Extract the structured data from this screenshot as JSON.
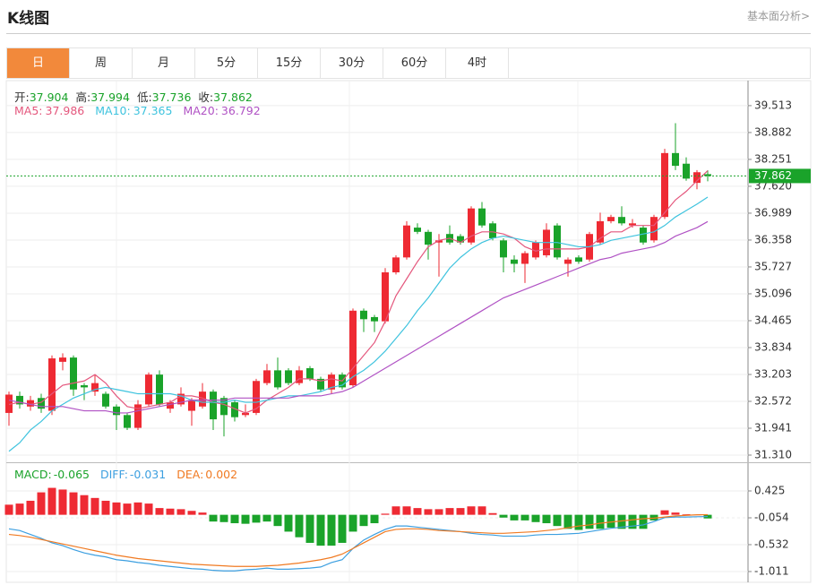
{
  "header": {
    "title": "K线图",
    "link": "基本面分析>"
  },
  "tabs": [
    "日",
    "周",
    "月",
    "5分",
    "15分",
    "30分",
    "60分",
    "4时"
  ],
  "active_tab": 0,
  "chart_data": [
    {
      "type": "candlestick",
      "up_color": "#ee2a33",
      "down_color": "#1aa32a",
      "open": [
        32.3,
        32.7,
        32.45,
        32.65,
        32.35,
        33.5,
        33.6,
        32.95,
        32.8,
        32.75,
        32.45,
        32.25,
        31.95,
        32.5,
        33.2,
        32.4,
        32.5,
        32.35,
        32.45,
        32.8,
        32.65,
        32.55,
        32.25,
        32.3,
        33.0,
        33.3,
        33.3,
        33.0,
        33.35,
        33.1,
        32.85,
        33.2,
        32.95,
        34.7,
        34.55,
        34.45,
        35.6,
        35.95,
        36.65,
        36.55,
        36.3,
        36.5,
        36.45,
        36.3,
        37.1,
        36.75,
        36.35,
        35.9,
        35.8,
        35.95,
        36.0,
        36.7,
        35.8,
        35.95,
        35.9,
        36.3,
        36.8,
        36.9,
        36.7,
        36.65,
        36.35,
        36.9,
        38.4,
        38.15,
        37.7,
        37.904
      ],
      "high": [
        32.8,
        32.8,
        32.7,
        32.75,
        33.65,
        33.7,
        33.65,
        33.0,
        33.2,
        32.8,
        32.5,
        32.3,
        32.6,
        33.25,
        33.3,
        32.6,
        32.9,
        32.65,
        33.0,
        32.85,
        32.7,
        32.6,
        32.5,
        33.1,
        33.45,
        33.6,
        33.35,
        33.4,
        33.4,
        33.15,
        33.25,
        33.25,
        34.75,
        34.75,
        34.6,
        35.7,
        36.0,
        36.8,
        36.75,
        36.6,
        36.5,
        36.7,
        36.5,
        37.15,
        37.25,
        36.8,
        36.4,
        36.0,
        36.1,
        36.35,
        36.75,
        36.75,
        35.95,
        36.0,
        36.55,
        37.0,
        36.95,
        37.15,
        36.85,
        36.7,
        36.95,
        38.5,
        39.1,
        38.3,
        38.0,
        37.994
      ],
      "low": [
        32.0,
        32.4,
        32.35,
        32.3,
        32.25,
        33.3,
        32.7,
        32.6,
        32.7,
        32.4,
        31.9,
        31.9,
        31.9,
        32.45,
        32.45,
        32.3,
        32.45,
        32.0,
        32.4,
        31.9,
        31.75,
        32.1,
        32.2,
        32.25,
        32.95,
        32.85,
        32.95,
        32.95,
        33.05,
        32.8,
        32.75,
        32.85,
        32.9,
        34.2,
        34.2,
        34.4,
        35.55,
        35.9,
        36.5,
        35.9,
        35.5,
        36.25,
        36.25,
        36.25,
        36.65,
        36.35,
        35.6,
        35.6,
        35.35,
        35.9,
        35.95,
        35.9,
        35.5,
        35.8,
        35.85,
        36.25,
        36.75,
        36.7,
        36.65,
        36.25,
        36.3,
        36.85,
        38.0,
        37.75,
        37.55,
        37.736
      ],
      "close": [
        32.73,
        32.5,
        32.6,
        32.4,
        33.58,
        33.6,
        32.85,
        32.9,
        33.0,
        32.45,
        32.25,
        31.95,
        32.5,
        33.2,
        32.5,
        32.55,
        32.75,
        32.6,
        32.8,
        32.15,
        32.25,
        32.2,
        32.3,
        33.05,
        33.3,
        32.9,
        33.0,
        33.3,
        33.1,
        32.85,
        33.2,
        32.9,
        34.7,
        34.5,
        34.45,
        35.6,
        35.95,
        36.7,
        36.55,
        36.25,
        36.35,
        36.3,
        36.3,
        37.1,
        36.7,
        36.4,
        35.95,
        35.8,
        36.05,
        36.3,
        36.6,
        35.95,
        35.9,
        35.85,
        36.5,
        36.8,
        36.9,
        36.75,
        36.75,
        36.3,
        36.9,
        38.4,
        38.1,
        37.8,
        37.95,
        37.862
      ],
      "info_labels": [
        "开:",
        "高:",
        "低:",
        "收:"
      ],
      "series": [
        {
          "name": "MA5:",
          "color": "#e4577d",
          "values": [
            32.5,
            32.55,
            32.5,
            32.55,
            32.75,
            32.95,
            33.0,
            33.05,
            33.2,
            33.0,
            32.7,
            32.45,
            32.4,
            32.45,
            32.5,
            32.55,
            32.7,
            32.7,
            32.65,
            32.55,
            32.5,
            32.4,
            32.3,
            32.4,
            32.6,
            32.75,
            32.9,
            33.1,
            33.1,
            33.05,
            33.1,
            33.05,
            33.35,
            33.65,
            33.95,
            34.45,
            35.05,
            35.45,
            35.85,
            36.2,
            36.35,
            36.4,
            36.3,
            36.45,
            36.55,
            36.55,
            36.5,
            36.4,
            36.2,
            36.1,
            36.15,
            36.15,
            36.15,
            36.15,
            36.2,
            36.4,
            36.55,
            36.55,
            36.7,
            36.7,
            36.7,
            37.0,
            37.3,
            37.5,
            37.75,
            37.986
          ]
        },
        {
          "name": "MA10:",
          "color": "#3ec3de",
          "values": [
            31.4,
            31.6,
            31.9,
            32.1,
            32.35,
            32.5,
            32.65,
            32.75,
            32.85,
            32.9,
            32.85,
            32.8,
            32.75,
            32.75,
            32.75,
            32.75,
            32.7,
            32.6,
            32.55,
            32.55,
            32.55,
            32.6,
            32.55,
            32.55,
            32.6,
            32.65,
            32.7,
            32.7,
            32.75,
            32.8,
            32.9,
            32.95,
            33.15,
            33.3,
            33.5,
            33.75,
            34.05,
            34.35,
            34.7,
            35.0,
            35.35,
            35.7,
            35.95,
            36.15,
            36.3,
            36.4,
            36.45,
            36.4,
            36.35,
            36.3,
            36.3,
            36.3,
            36.25,
            36.2,
            36.2,
            36.25,
            36.35,
            36.4,
            36.45,
            36.5,
            36.55,
            36.7,
            36.9,
            37.05,
            37.2,
            37.365
          ]
        },
        {
          "name": "MA20:",
          "color": "#b052c4",
          "values": [
            32.6,
            32.55,
            32.5,
            32.45,
            32.45,
            32.45,
            32.4,
            32.35,
            32.35,
            32.35,
            32.3,
            32.3,
            32.35,
            32.4,
            32.45,
            32.5,
            32.55,
            32.6,
            32.6,
            32.6,
            32.6,
            32.65,
            32.65,
            32.65,
            32.65,
            32.65,
            32.65,
            32.7,
            32.7,
            32.7,
            32.75,
            32.8,
            32.9,
            33.05,
            33.2,
            33.35,
            33.5,
            33.65,
            33.8,
            33.95,
            34.1,
            34.25,
            34.4,
            34.55,
            34.7,
            34.85,
            35.0,
            35.1,
            35.2,
            35.3,
            35.4,
            35.5,
            35.6,
            35.7,
            35.8,
            35.9,
            35.95,
            36.05,
            36.1,
            36.15,
            36.2,
            36.3,
            36.45,
            36.55,
            36.65,
            36.792
          ]
        }
      ],
      "ylim": [
        31.163,
        40.1
      ],
      "yticks": [
        39.513,
        38.882,
        38.251,
        {
          "value": 37.62,
          "label": "37.620"
        },
        36.989,
        36.358,
        35.727,
        35.096,
        34.465,
        33.834,
        33.203,
        32.572,
        31.941,
        {
          "value": 31.31,
          "label": "31.310"
        }
      ],
      "grid": true
    },
    {
      "type": "macd",
      "up_color": "#ee2a33",
      "down_color": "#1aa32a",
      "histogram": {
        "name": "MACD:",
        "color": "#1aa32a",
        "values": [
          0.18,
          0.2,
          0.25,
          0.4,
          0.48,
          0.45,
          0.4,
          0.35,
          0.3,
          0.25,
          0.22,
          0.2,
          0.22,
          0.2,
          0.12,
          0.11,
          0.1,
          0.07,
          0.04,
          -0.12,
          -0.13,
          -0.15,
          -0.16,
          -0.14,
          -0.12,
          -0.2,
          -0.3,
          -0.4,
          -0.5,
          -0.55,
          -0.55,
          -0.5,
          -0.3,
          -0.2,
          -0.15,
          0.02,
          0.15,
          0.15,
          0.12,
          0.1,
          0.1,
          0.12,
          0.12,
          0.15,
          0.15,
          0.03,
          -0.05,
          -0.1,
          -0.1,
          -0.13,
          -0.15,
          -0.2,
          -0.25,
          -0.27,
          -0.25,
          -0.25,
          -0.23,
          -0.25,
          -0.25,
          -0.25,
          -0.1,
          0.08,
          0.04,
          0.01,
          0.0,
          -0.065
        ]
      },
      "series": [
        {
          "name": "DIFF:",
          "color": "#3c9fe0",
          "values": [
            -0.25,
            -0.28,
            -0.35,
            -0.42,
            -0.5,
            -0.55,
            -0.62,
            -0.68,
            -0.72,
            -0.75,
            -0.8,
            -0.82,
            -0.85,
            -0.87,
            -0.9,
            -0.92,
            -0.94,
            -0.96,
            -0.97,
            -0.99,
            -1.0,
            -1.0,
            -0.98,
            -0.97,
            -0.95,
            -0.97,
            -0.97,
            -0.96,
            -0.95,
            -0.93,
            -0.85,
            -0.8,
            -0.6,
            -0.45,
            -0.35,
            -0.26,
            -0.2,
            -0.2,
            -0.22,
            -0.24,
            -0.26,
            -0.28,
            -0.3,
            -0.33,
            -0.35,
            -0.36,
            -0.38,
            -0.38,
            -0.38,
            -0.36,
            -0.35,
            -0.35,
            -0.34,
            -0.33,
            -0.3,
            -0.27,
            -0.24,
            -0.22,
            -0.2,
            -0.18,
            -0.12,
            -0.05,
            -0.04,
            -0.04,
            -0.035,
            -0.031
          ]
        },
        {
          "name": "DEA:",
          "color": "#f07a22",
          "values": [
            -0.35,
            -0.37,
            -0.4,
            -0.44,
            -0.48,
            -0.52,
            -0.56,
            -0.6,
            -0.64,
            -0.68,
            -0.72,
            -0.75,
            -0.78,
            -0.8,
            -0.82,
            -0.84,
            -0.86,
            -0.88,
            -0.89,
            -0.9,
            -0.91,
            -0.92,
            -0.92,
            -0.92,
            -0.91,
            -0.9,
            -0.88,
            -0.86,
            -0.83,
            -0.8,
            -0.76,
            -0.7,
            -0.6,
            -0.5,
            -0.4,
            -0.3,
            -0.26,
            -0.25,
            -0.25,
            -0.26,
            -0.28,
            -0.29,
            -0.3,
            -0.31,
            -0.32,
            -0.33,
            -0.33,
            -0.32,
            -0.31,
            -0.3,
            -0.28,
            -0.26,
            -0.23,
            -0.2,
            -0.18,
            -0.15,
            -0.13,
            -0.11,
            -0.09,
            -0.07,
            -0.06,
            -0.04,
            -0.02,
            -0.01,
            0.0,
            0.002
          ]
        }
      ],
      "ylim": [
        -1.203,
        0.904
      ],
      "yticks": [
        0.425,
        -0.054,
        -0.532,
        -1.011
      ],
      "grid": true
    }
  ]
}
